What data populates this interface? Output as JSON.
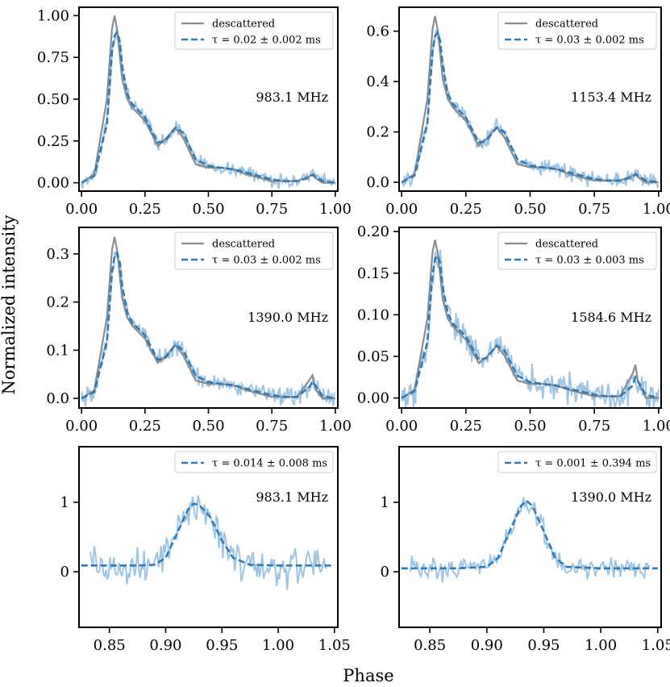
{
  "figure": {
    "ylabel": "Normalized intensity",
    "xlabel": "Phase"
  },
  "colors": {
    "descattered": "#8c8c8c",
    "fit": "#2b7bba",
    "data": "#9ec5e4",
    "axis": "#000000"
  },
  "chart_data": [
    {
      "type": "line",
      "panel": "top-left",
      "annotation": "983.1 MHz",
      "xlim": [
        -0.01,
        1.01
      ],
      "ylim": [
        -0.05,
        1.05
      ],
      "xticks": [
        "0.00",
        "0.25",
        "0.50",
        "0.75",
        "1.00"
      ],
      "yticks": [
        "0.00",
        "0.25",
        "0.50",
        "0.75",
        "1.00"
      ],
      "amplitude": 1.0,
      "noise_level": 0.02,
      "legend": {
        "placement": "top-right",
        "entries": [
          "descattered",
          "τ = 0.02 ± 0.002 ms"
        ]
      },
      "series": [
        {
          "name": "descattered",
          "x": [
            0.0,
            0.05,
            0.1,
            0.12,
            0.13,
            0.14,
            0.16,
            0.18,
            0.2,
            0.25,
            0.3,
            0.33,
            0.37,
            0.4,
            0.45,
            0.5,
            0.55,
            0.6,
            0.65,
            0.7,
            0.75,
            0.8,
            0.85,
            0.9,
            0.91,
            0.92,
            0.95,
            1.0
          ],
          "y": [
            0.0,
            0.05,
            0.5,
            0.92,
            1.0,
            0.92,
            0.62,
            0.5,
            0.45,
            0.37,
            0.22,
            0.26,
            0.33,
            0.27,
            0.11,
            0.09,
            0.09,
            0.08,
            0.05,
            0.03,
            0.01,
            0.01,
            0.01,
            0.04,
            0.05,
            0.03,
            0.0,
            0.0
          ]
        },
        {
          "name": "τ = 0.02 ± 0.002 ms",
          "x": [
            0.0,
            0.05,
            0.1,
            0.12,
            0.13,
            0.14,
            0.15,
            0.16,
            0.18,
            0.2,
            0.25,
            0.3,
            0.33,
            0.37,
            0.4,
            0.45,
            0.5,
            0.55,
            0.6,
            0.65,
            0.7,
            0.75,
            0.8,
            0.85,
            0.9,
            0.91,
            0.92,
            0.95,
            1.0
          ],
          "y": [
            0.0,
            0.04,
            0.35,
            0.78,
            0.88,
            0.9,
            0.85,
            0.7,
            0.53,
            0.47,
            0.39,
            0.24,
            0.25,
            0.33,
            0.3,
            0.14,
            0.1,
            0.09,
            0.08,
            0.06,
            0.04,
            0.02,
            0.01,
            0.01,
            0.03,
            0.05,
            0.04,
            0.01,
            0.0
          ]
        }
      ]
    },
    {
      "type": "line",
      "panel": "top-right",
      "annotation": "1153.4 MHz",
      "xlim": [
        -0.01,
        1.01
      ],
      "ylim": [
        -0.035,
        0.695
      ],
      "xticks": [
        "0.00",
        "0.25",
        "0.50",
        "0.75",
        "1.00"
      ],
      "yticks": [
        "0.0",
        "0.2",
        "0.4",
        "0.6"
      ],
      "amplitude": 0.66,
      "noise_level": 0.015,
      "legend": {
        "placement": "top-right",
        "entries": [
          "descattered",
          "τ = 0.03 ± 0.002 ms"
        ]
      },
      "series": [
        {
          "name": "descattered",
          "x": [
            0.0,
            0.05,
            0.1,
            0.12,
            0.13,
            0.14,
            0.16,
            0.18,
            0.2,
            0.25,
            0.3,
            0.33,
            0.37,
            0.4,
            0.45,
            0.5,
            0.55,
            0.6,
            0.65,
            0.7,
            0.75,
            0.8,
            0.85,
            0.9,
            0.91,
            0.92,
            0.95,
            1.0
          ],
          "y": [
            0.0,
            0.033,
            0.33,
            0.607,
            0.66,
            0.607,
            0.409,
            0.33,
            0.297,
            0.244,
            0.145,
            0.172,
            0.218,
            0.178,
            0.073,
            0.059,
            0.059,
            0.053,
            0.033,
            0.02,
            0.007,
            0.007,
            0.007,
            0.026,
            0.033,
            0.02,
            0.0,
            0.0
          ]
        },
        {
          "name": "τ = 0.03 ± 0.002 ms",
          "x": [
            0.0,
            0.05,
            0.1,
            0.12,
            0.13,
            0.14,
            0.15,
            0.16,
            0.18,
            0.2,
            0.25,
            0.3,
            0.33,
            0.37,
            0.4,
            0.45,
            0.5,
            0.55,
            0.6,
            0.65,
            0.7,
            0.75,
            0.8,
            0.85,
            0.9,
            0.91,
            0.92,
            0.95,
            1.0
          ],
          "y": [
            0.0,
            0.026,
            0.231,
            0.515,
            0.581,
            0.594,
            0.561,
            0.462,
            0.35,
            0.31,
            0.257,
            0.158,
            0.165,
            0.218,
            0.198,
            0.092,
            0.066,
            0.059,
            0.053,
            0.04,
            0.026,
            0.013,
            0.007,
            0.007,
            0.02,
            0.033,
            0.026,
            0.007,
            0.0
          ]
        }
      ]
    },
    {
      "type": "line",
      "panel": "middle-left",
      "annotation": "1390.0 MHz",
      "xlim": [
        -0.01,
        1.01
      ],
      "ylim": [
        -0.02,
        0.355
      ],
      "xticks": [
        "0.00",
        "0.25",
        "0.50",
        "0.75",
        "1.00"
      ],
      "yticks": [
        "0.0",
        "0.1",
        "0.2",
        "0.3"
      ],
      "amplitude": 0.335,
      "noise_level": 0.009,
      "legend": {
        "placement": "top-right",
        "entries": [
          "descattered",
          "τ = 0.03 ± 0.002 ms"
        ]
      },
      "series": [
        {
          "name": "descattered",
          "x": [
            0.0,
            0.05,
            0.1,
            0.12,
            0.13,
            0.14,
            0.16,
            0.18,
            0.2,
            0.25,
            0.3,
            0.33,
            0.37,
            0.4,
            0.45,
            0.5,
            0.55,
            0.6,
            0.65,
            0.7,
            0.75,
            0.8,
            0.85,
            0.9,
            0.91,
            0.92,
            0.95,
            1.0
          ],
          "y": [
            0.0,
            0.017,
            0.168,
            0.308,
            0.335,
            0.308,
            0.208,
            0.168,
            0.151,
            0.124,
            0.074,
            0.087,
            0.111,
            0.09,
            0.037,
            0.03,
            0.03,
            0.027,
            0.017,
            0.01,
            0.003,
            0.003,
            0.003,
            0.04,
            0.048,
            0.02,
            0.0,
            0.0
          ]
        },
        {
          "name": "τ = 0.03 ± 0.002 ms",
          "x": [
            0.0,
            0.05,
            0.1,
            0.12,
            0.13,
            0.14,
            0.15,
            0.16,
            0.18,
            0.2,
            0.25,
            0.3,
            0.33,
            0.37,
            0.4,
            0.45,
            0.5,
            0.55,
            0.6,
            0.65,
            0.7,
            0.75,
            0.8,
            0.85,
            0.9,
            0.91,
            0.92,
            0.95,
            1.0
          ],
          "y": [
            0.0,
            0.013,
            0.117,
            0.261,
            0.295,
            0.302,
            0.285,
            0.235,
            0.178,
            0.157,
            0.131,
            0.08,
            0.084,
            0.111,
            0.1,
            0.047,
            0.034,
            0.03,
            0.027,
            0.02,
            0.013,
            0.007,
            0.003,
            0.003,
            0.025,
            0.035,
            0.028,
            0.005,
            0.0
          ]
        }
      ]
    },
    {
      "type": "line",
      "panel": "middle-right",
      "annotation": "1584.6 MHz",
      "xlim": [
        -0.01,
        1.01
      ],
      "ylim": [
        -0.012,
        0.205
      ],
      "xticks": [
        "0.00",
        "0.25",
        "0.50",
        "0.75",
        "1.00"
      ],
      "yticks": [
        "0.00",
        "0.05",
        "0.10",
        "0.15",
        "0.20"
      ],
      "amplitude": 0.19,
      "noise_level": 0.009,
      "legend": {
        "placement": "top-right",
        "entries": [
          "descattered",
          "τ = 0.03 ± 0.003 ms"
        ]
      },
      "series": [
        {
          "name": "descattered",
          "x": [
            0.0,
            0.05,
            0.1,
            0.12,
            0.13,
            0.14,
            0.16,
            0.18,
            0.2,
            0.25,
            0.3,
            0.33,
            0.37,
            0.4,
            0.45,
            0.5,
            0.55,
            0.6,
            0.65,
            0.7,
            0.75,
            0.8,
            0.85,
            0.9,
            0.91,
            0.92,
            0.95,
            1.0
          ],
          "y": [
            0.0,
            0.01,
            0.095,
            0.175,
            0.19,
            0.175,
            0.118,
            0.095,
            0.086,
            0.07,
            0.042,
            0.049,
            0.063,
            0.051,
            0.021,
            0.017,
            0.017,
            0.015,
            0.01,
            0.006,
            0.002,
            0.002,
            0.002,
            0.03,
            0.04,
            0.02,
            0.0,
            0.0
          ]
        },
        {
          "name": "τ = 0.03 ± 0.003 ms",
          "x": [
            0.0,
            0.05,
            0.1,
            0.12,
            0.13,
            0.14,
            0.15,
            0.16,
            0.18,
            0.2,
            0.25,
            0.3,
            0.33,
            0.37,
            0.4,
            0.45,
            0.5,
            0.55,
            0.6,
            0.65,
            0.7,
            0.75,
            0.8,
            0.85,
            0.9,
            0.91,
            0.92,
            0.95,
            1.0
          ],
          "y": [
            0.0,
            0.008,
            0.067,
            0.148,
            0.167,
            0.171,
            0.162,
            0.133,
            0.101,
            0.089,
            0.074,
            0.046,
            0.048,
            0.063,
            0.057,
            0.027,
            0.019,
            0.017,
            0.015,
            0.011,
            0.008,
            0.004,
            0.002,
            0.002,
            0.015,
            0.025,
            0.02,
            0.004,
            0.0
          ]
        }
      ]
    },
    {
      "type": "line",
      "panel": "bottom-left",
      "annotation": "983.1 MHz",
      "xlim": [
        0.823,
        1.053
      ],
      "ylim": [
        -0.8,
        1.8
      ],
      "xticks": [
        "0.85",
        "0.90",
        "0.95",
        "1.00",
        "1.05"
      ],
      "yticks": [
        "0",
        "1"
      ],
      "amplitude": 1.0,
      "noise_level": 0.13,
      "legend": {
        "placement": "top-right",
        "entries": [
          "τ = 0.014 ± 0.008 ms"
        ]
      },
      "series": [
        {
          "name": "τ = 0.014 ± 0.008 ms",
          "x": [
            0.825,
            0.85,
            0.875,
            0.89,
            0.9,
            0.91,
            0.92,
            0.925,
            0.93,
            0.94,
            0.95,
            0.96,
            0.975,
            1.0,
            1.05
          ],
          "y": [
            0.09,
            0.09,
            0.09,
            0.1,
            0.2,
            0.55,
            0.9,
            0.98,
            0.96,
            0.78,
            0.45,
            0.2,
            0.1,
            0.09,
            0.09
          ]
        }
      ]
    },
    {
      "type": "line",
      "panel": "bottom-right",
      "annotation": "1390.0 MHz",
      "xlim": [
        0.823,
        1.053
      ],
      "ylim": [
        -0.8,
        1.8
      ],
      "xticks": [
        "0.85",
        "0.90",
        "0.95",
        "1.00",
        "1.05"
      ],
      "yticks": [
        "0",
        "1"
      ],
      "amplitude": 1.0,
      "noise_level": 0.08,
      "legend": {
        "placement": "top-right",
        "entries": [
          "τ = 0.001 ± 0.394 ms"
        ]
      },
      "series": [
        {
          "name": "τ = 0.001 ± 0.394 ms",
          "x": [
            0.825,
            0.85,
            0.875,
            0.9,
            0.91,
            0.92,
            0.93,
            0.935,
            0.94,
            0.95,
            0.96,
            0.97,
            1.0,
            1.05
          ],
          "y": [
            0.05,
            0.05,
            0.05,
            0.07,
            0.2,
            0.58,
            0.95,
            1.02,
            0.95,
            0.58,
            0.2,
            0.07,
            0.05,
            0.05
          ]
        }
      ]
    }
  ]
}
